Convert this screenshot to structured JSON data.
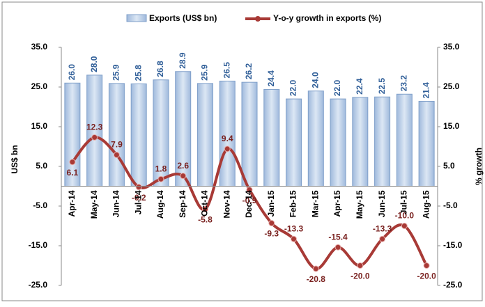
{
  "chart_data": {
    "type": "bar-line",
    "categories": [
      "Apr-14",
      "May-14",
      "Jun-14",
      "Jul-14",
      "Aug-14",
      "Sep-14",
      "Oct-14",
      "Nov-14",
      "Dec-14",
      "Jan-15",
      "Feb-15",
      "Mar-15",
      "Apr-15",
      "May-15",
      "Jun-15",
      "Jul-15",
      "Aug-15"
    ],
    "series": [
      {
        "name": "Exports (US$ bn)",
        "type": "bar",
        "color": "#b8cde6",
        "values": [
          26.0,
          28.0,
          25.9,
          25.8,
          26.8,
          28.9,
          25.9,
          26.5,
          26.2,
          24.4,
          22.0,
          24.0,
          22.0,
          22.4,
          22.5,
          23.2,
          21.4
        ],
        "value_labels": [
          "26.0",
          "28.0",
          "25.9",
          "25.8",
          "26.8",
          "28.9",
          "25.9",
          "26.5",
          "26.2",
          "24.4",
          "22.0",
          "24.0",
          "22.0",
          "22.4",
          "22.5",
          "23.2",
          "21.4"
        ]
      },
      {
        "name": "Y-o-y growth in exports (%)",
        "type": "line",
        "axis": "y2",
        "color": "#a83a36",
        "values": [
          6.1,
          12.3,
          7.9,
          -0.2,
          1.8,
          2.6,
          -5.8,
          9.4,
          -0.9,
          -9.3,
          -13.3,
          -20.8,
          -15.4,
          -20.0,
          -13.3,
          -10.0,
          -20.0
        ],
        "value_labels": [
          "6.1",
          "12.3",
          "7.9",
          "-0.2",
          "1.8",
          "2.6",
          "-5.8",
          "9.4",
          "-0.9",
          "-9.3",
          "-13.3",
          "-20.8",
          "-15.4",
          "-20.0",
          "-13.3",
          "-10.0",
          "-20.0"
        ]
      }
    ],
    "ylabel": "US$ bn",
    "y2label": "% growth",
    "ylim": [
      -25,
      35
    ],
    "yticks": [
      {
        "value": -25,
        "label": "-25.0"
      },
      {
        "value": -15,
        "label": "-15.0"
      },
      {
        "value": -5,
        "label": "-5.0"
      },
      {
        "value": 5,
        "label": "5.0"
      },
      {
        "value": 15,
        "label": "15.0"
      },
      {
        "value": 25,
        "label": "25.0"
      },
      {
        "value": 35,
        "label": "35.0"
      }
    ],
    "y2lim": [
      -25,
      35
    ],
    "y2ticks": [
      {
        "value": -25,
        "label": "-25.0"
      },
      {
        "value": -15,
        "label": "-15.0"
      },
      {
        "value": -5,
        "label": "-5.0"
      },
      {
        "value": 5,
        "label": "5.0"
      },
      {
        "value": 15,
        "label": "15.0"
      },
      {
        "value": 25,
        "label": "25.0"
      },
      {
        "value": 35,
        "label": "35.0"
      }
    ],
    "legend": "top"
  }
}
